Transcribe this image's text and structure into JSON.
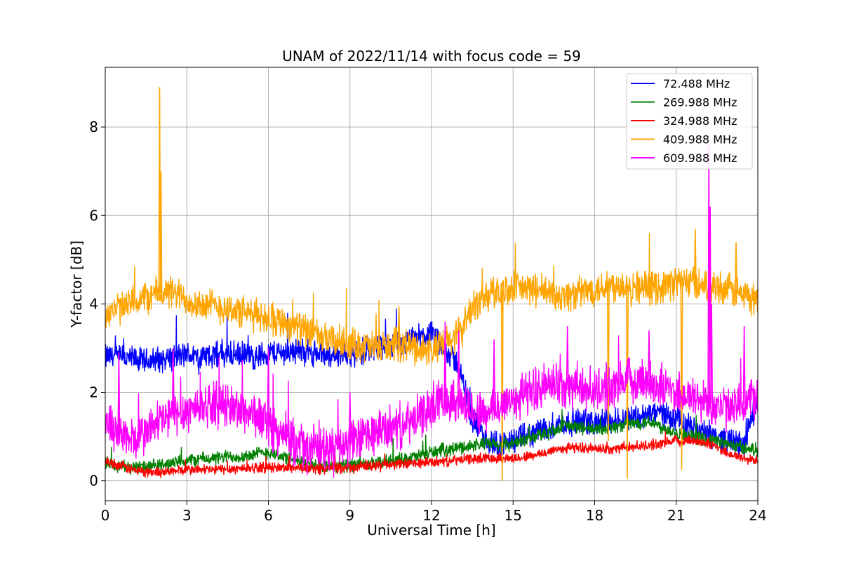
{
  "chart_data": {
    "type": "line",
    "title": "UNAM of 2022/11/14 with focus code = 59",
    "xlabel": "Universal Time [h]",
    "ylabel": "Y-factor [dB]",
    "xlim": [
      0,
      24
    ],
    "ylim": [
      -0.45,
      9.35
    ],
    "xticks": [
      0,
      3,
      6,
      9,
      12,
      15,
      18,
      21,
      24
    ],
    "yticks": [
      0,
      2,
      4,
      6,
      8
    ],
    "grid": true,
    "legend_position": "upper right",
    "series": [
      {
        "name": " 72.488 MHz",
        "color": "#0000ff",
        "points": [
          [
            0,
            2.8
          ],
          [
            0.5,
            2.8
          ],
          [
            1,
            2.75
          ],
          [
            1.5,
            2.7
          ],
          [
            2,
            2.75
          ],
          [
            2.5,
            2.8
          ],
          [
            3,
            2.85
          ],
          [
            3.5,
            2.8
          ],
          [
            4,
            2.85
          ],
          [
            4.5,
            2.85
          ],
          [
            5,
            2.85
          ],
          [
            5.5,
            2.8
          ],
          [
            6,
            2.9
          ],
          [
            6.5,
            2.9
          ],
          [
            7,
            2.95
          ],
          [
            7.5,
            2.9
          ],
          [
            8,
            2.85
          ],
          [
            8.5,
            2.85
          ],
          [
            9,
            2.9
          ],
          [
            9.5,
            2.95
          ],
          [
            10,
            3.05
          ],
          [
            10.5,
            3.05
          ],
          [
            11,
            3.1
          ],
          [
            11.5,
            3.25
          ],
          [
            12,
            3.3
          ],
          [
            12.5,
            3.0
          ],
          [
            13,
            2.6
          ],
          [
            13.5,
            1.4
          ],
          [
            14,
            0.9
          ],
          [
            14.5,
            0.85
          ],
          [
            15,
            0.9
          ],
          [
            15.5,
            1.0
          ],
          [
            16,
            1.15
          ],
          [
            16.5,
            1.25
          ],
          [
            17,
            1.3
          ],
          [
            17.5,
            1.35
          ],
          [
            18,
            1.3
          ],
          [
            18.5,
            1.35
          ],
          [
            19,
            1.4
          ],
          [
            19.5,
            1.45
          ],
          [
            20,
            1.5
          ],
          [
            20.5,
            1.55
          ],
          [
            21,
            1.4
          ],
          [
            21.5,
            1.2
          ],
          [
            22,
            1.1
          ],
          [
            22.5,
            1.0
          ],
          [
            23,
            0.9
          ],
          [
            23.5,
            0.8
          ],
          [
            24,
            1.9
          ]
        ],
        "noise": 0.35
      },
      {
        "name": " 269.988 MHz",
        "color": "#008000",
        "points": [
          [
            0,
            0.4
          ],
          [
            0.5,
            0.35
          ],
          [
            1,
            0.3
          ],
          [
            1.5,
            0.3
          ],
          [
            2,
            0.35
          ],
          [
            2.5,
            0.4
          ],
          [
            3,
            0.45
          ],
          [
            3.5,
            0.5
          ],
          [
            4,
            0.5
          ],
          [
            4.5,
            0.55
          ],
          [
            5,
            0.55
          ],
          [
            5.5,
            0.6
          ],
          [
            6,
            0.65
          ],
          [
            6.5,
            0.55
          ],
          [
            7,
            0.45
          ],
          [
            7.5,
            0.4
          ],
          [
            8,
            0.35
          ],
          [
            8.5,
            0.35
          ],
          [
            9,
            0.35
          ],
          [
            9.5,
            0.35
          ],
          [
            10,
            0.4
          ],
          [
            10.5,
            0.45
          ],
          [
            11,
            0.5
          ],
          [
            11.5,
            0.55
          ],
          [
            12,
            0.65
          ],
          [
            12.5,
            0.7
          ],
          [
            13,
            0.75
          ],
          [
            13.5,
            0.8
          ],
          [
            14,
            0.85
          ],
          [
            14.5,
            0.8
          ],
          [
            15,
            0.85
          ],
          [
            15.5,
            0.95
          ],
          [
            16,
            1.05
          ],
          [
            16.5,
            1.15
          ],
          [
            17,
            1.25
          ],
          [
            17.5,
            1.2
          ],
          [
            18,
            1.15
          ],
          [
            18.5,
            1.2
          ],
          [
            19,
            1.25
          ],
          [
            19.5,
            1.3
          ],
          [
            20,
            1.35
          ],
          [
            20.5,
            1.2
          ],
          [
            21,
            1.1
          ],
          [
            21.5,
            1.0
          ],
          [
            22,
            0.95
          ],
          [
            22.5,
            0.9
          ],
          [
            23,
            0.8
          ],
          [
            23.5,
            0.75
          ],
          [
            24,
            0.7
          ]
        ],
        "noise": 0.18
      },
      {
        "name": " 324.988 MHz",
        "color": "#ff0000",
        "points": [
          [
            0,
            0.45
          ],
          [
            0.5,
            0.35
          ],
          [
            1,
            0.25
          ],
          [
            1.5,
            0.2
          ],
          [
            2,
            0.2
          ],
          [
            2.5,
            0.22
          ],
          [
            3,
            0.25
          ],
          [
            3.5,
            0.25
          ],
          [
            4,
            0.25
          ],
          [
            4.5,
            0.27
          ],
          [
            5,
            0.28
          ],
          [
            5.5,
            0.3
          ],
          [
            6,
            0.3
          ],
          [
            6.5,
            0.3
          ],
          [
            7,
            0.3
          ],
          [
            7.5,
            0.28
          ],
          [
            8,
            0.27
          ],
          [
            8.5,
            0.28
          ],
          [
            9,
            0.3
          ],
          [
            9.5,
            0.32
          ],
          [
            10,
            0.35
          ],
          [
            10.5,
            0.37
          ],
          [
            11,
            0.38
          ],
          [
            11.5,
            0.4
          ],
          [
            12,
            0.42
          ],
          [
            12.5,
            0.44
          ],
          [
            13,
            0.47
          ],
          [
            13.5,
            0.5
          ],
          [
            14,
            0.52
          ],
          [
            14.5,
            0.52
          ],
          [
            15,
            0.5
          ],
          [
            15.5,
            0.55
          ],
          [
            16,
            0.6
          ],
          [
            16.5,
            0.7
          ],
          [
            17,
            0.75
          ],
          [
            17.5,
            0.75
          ],
          [
            18,
            0.72
          ],
          [
            18.5,
            0.72
          ],
          [
            19,
            0.75
          ],
          [
            19.5,
            0.78
          ],
          [
            20,
            0.8
          ],
          [
            20.5,
            0.85
          ],
          [
            21,
            0.9
          ],
          [
            21.5,
            0.92
          ],
          [
            22,
            0.88
          ],
          [
            22.5,
            0.75
          ],
          [
            23,
            0.6
          ],
          [
            23.5,
            0.5
          ],
          [
            24,
            0.45
          ]
        ],
        "noise": 0.14
      },
      {
        "name": " 409.988 MHz",
        "color": "#ffa500",
        "points": [
          [
            0,
            3.8
          ],
          [
            0.5,
            3.9
          ],
          [
            1,
            4.0
          ],
          [
            1.5,
            4.15
          ],
          [
            2,
            4.25
          ],
          [
            2.5,
            4.25
          ],
          [
            3,
            4.1
          ],
          [
            3.5,
            4.0
          ],
          [
            4,
            3.95
          ],
          [
            4.5,
            3.9
          ],
          [
            5,
            3.8
          ],
          [
            5.5,
            3.75
          ],
          [
            6,
            3.7
          ],
          [
            6.5,
            3.6
          ],
          [
            7,
            3.5
          ],
          [
            7.5,
            3.35
          ],
          [
            8,
            3.2
          ],
          [
            8.5,
            3.15
          ],
          [
            9,
            3.1
          ],
          [
            9.5,
            3.05
          ],
          [
            10,
            3.0
          ],
          [
            10.5,
            3.05
          ],
          [
            11,
            3.1
          ],
          [
            11.5,
            3.0
          ],
          [
            12,
            2.95
          ],
          [
            12.5,
            3.1
          ],
          [
            13,
            3.3
          ],
          [
            13.5,
            3.9
          ],
          [
            14,
            4.2
          ],
          [
            14.5,
            4.3
          ],
          [
            15,
            4.35
          ],
          [
            15.5,
            4.35
          ],
          [
            16,
            4.3
          ],
          [
            16.5,
            4.2
          ],
          [
            17,
            4.2
          ],
          [
            17.5,
            4.25
          ],
          [
            18,
            4.35
          ],
          [
            18.5,
            4.4
          ],
          [
            19,
            4.45
          ],
          [
            19.5,
            4.4
          ],
          [
            20,
            4.35
          ],
          [
            20.5,
            4.4
          ],
          [
            21,
            4.5
          ],
          [
            21.5,
            4.5
          ],
          [
            22,
            4.45
          ],
          [
            22.5,
            4.4
          ],
          [
            23,
            4.3
          ],
          [
            23.5,
            4.2
          ],
          [
            24,
            4.1
          ]
        ],
        "noise": 0.45,
        "spikes": [
          [
            2.0,
            8.9
          ],
          [
            2.05,
            7.0
          ],
          [
            10.8,
            3.95
          ],
          [
            14.6,
            0.0
          ],
          [
            18.5,
            0.9
          ],
          [
            19.2,
            0.05
          ],
          [
            21.2,
            0.25
          ],
          [
            21.7,
            5.7
          ],
          [
            23.2,
            5.4
          ]
        ]
      },
      {
        "name": " 609.988 MHz",
        "color": "#ff00ff",
        "points": [
          [
            0,
            1.4
          ],
          [
            0.5,
            1.1
          ],
          [
            1,
            0.9
          ],
          [
            1.5,
            1.1
          ],
          [
            2,
            1.35
          ],
          [
            2.5,
            1.5
          ],
          [
            3,
            1.6
          ],
          [
            3.5,
            1.7
          ],
          [
            4,
            1.75
          ],
          [
            4.5,
            1.7
          ],
          [
            5,
            1.6
          ],
          [
            5.5,
            1.5
          ],
          [
            6,
            1.3
          ],
          [
            6.5,
            1.0
          ],
          [
            7,
            0.85
          ],
          [
            7.5,
            0.75
          ],
          [
            8,
            0.7
          ],
          [
            8.5,
            0.75
          ],
          [
            9,
            0.85
          ],
          [
            9.5,
            1.0
          ],
          [
            10,
            1.1
          ],
          [
            10.5,
            1.2
          ],
          [
            11,
            1.25
          ],
          [
            11.5,
            1.4
          ],
          [
            12,
            1.7
          ],
          [
            12.5,
            1.9
          ],
          [
            13,
            1.8
          ],
          [
            13.5,
            1.6
          ],
          [
            14,
            1.5
          ],
          [
            14.5,
            1.7
          ],
          [
            15,
            1.85
          ],
          [
            15.5,
            2.0
          ],
          [
            16,
            2.1
          ],
          [
            16.5,
            2.2
          ],
          [
            17,
            2.15
          ],
          [
            17.5,
            2.1
          ],
          [
            18,
            2.05
          ],
          [
            18.5,
            2.1
          ],
          [
            19,
            2.2
          ],
          [
            19.5,
            2.3
          ],
          [
            20,
            2.25
          ],
          [
            20.5,
            2.1
          ],
          [
            21,
            2.0
          ],
          [
            21.5,
            1.9
          ],
          [
            22,
            1.8
          ],
          [
            22.5,
            1.7
          ],
          [
            23,
            1.6
          ],
          [
            23.5,
            1.7
          ],
          [
            24,
            2.0
          ]
        ],
        "noise": 0.6,
        "spikes": [
          [
            0.5,
            2.9
          ],
          [
            2.5,
            3.0
          ],
          [
            6.0,
            3.0
          ],
          [
            9.0,
            2.0
          ],
          [
            12.5,
            3.6
          ],
          [
            13.0,
            3.4
          ],
          [
            14.3,
            3.2
          ],
          [
            17.0,
            3.5
          ],
          [
            20.0,
            3.4
          ],
          [
            22.2,
            7.6
          ],
          [
            22.25,
            6.2
          ],
          [
            22.3,
            4.0
          ],
          [
            23.5,
            3.5
          ]
        ]
      }
    ]
  }
}
